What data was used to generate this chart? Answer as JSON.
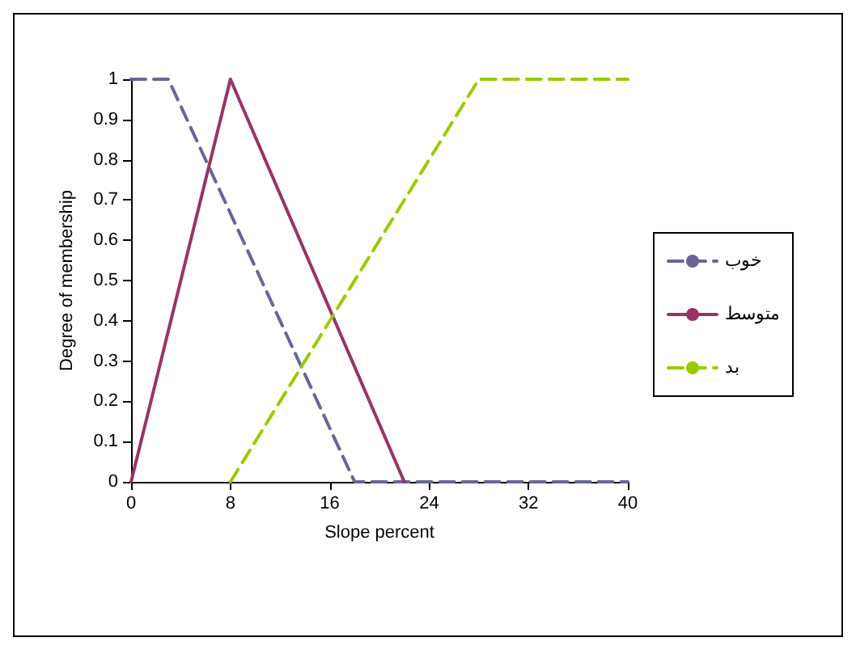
{
  "chart_data": {
    "type": "line",
    "xlabel": "Slope percent",
    "ylabel": "Degree of membership",
    "xlim": [
      0,
      40
    ],
    "xticks": [
      0,
      8,
      16,
      24,
      32,
      40
    ],
    "ylim": [
      0,
      1
    ],
    "yticks": [
      0,
      0.1,
      0.2,
      0.3,
      0.4,
      0.5,
      0.6,
      0.7,
      0.8,
      0.9,
      1
    ],
    "grid": false,
    "legend": "right",
    "marker": "none",
    "series": [
      {
        "name": "خوب",
        "color": "#666699",
        "line_style": "dashed",
        "x": [
          0,
          3,
          18,
          40
        ],
        "values": [
          1,
          1,
          0,
          0
        ]
      },
      {
        "name": "متوسط",
        "color": "#993366",
        "line_style": "solid",
        "x": [
          0,
          8,
          22
        ],
        "values": [
          0,
          1,
          0
        ]
      },
      {
        "name": "بد",
        "color": "#99cc00",
        "line_style": "dashed",
        "x": [
          8,
          28,
          40
        ],
        "values": [
          0,
          1,
          1
        ]
      }
    ]
  }
}
